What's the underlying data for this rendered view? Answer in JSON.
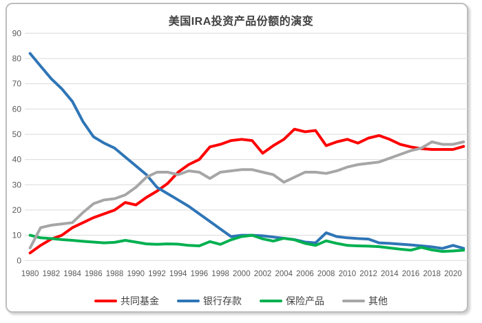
{
  "title_bar": {
    "title": "美国IRA投资产品份额的演变"
  },
  "colors": {
    "title_text": "#404040",
    "axis_text": "#595959",
    "gridline": "#D9D9D9",
    "card_border": "#BDBDBD",
    "legend_text": "#404040"
  },
  "chart_data": {
    "type": "line",
    "title": "美国IRA投资产品份额的演变",
    "x": [
      1980,
      1981,
      1982,
      1983,
      1984,
      1985,
      1986,
      1987,
      1988,
      1989,
      1990,
      1991,
      1992,
      1993,
      1994,
      1995,
      1996,
      1997,
      1998,
      1999,
      2000,
      2001,
      2002,
      2003,
      2004,
      2005,
      2006,
      2007,
      2008,
      2009,
      2010,
      2011,
      2012,
      2013,
      2014,
      2015,
      2016,
      2017,
      2018,
      2019,
      2020,
      2021
    ],
    "x_tick_interval": 2,
    "x_tick_labels": [
      "1980",
      "1982",
      "1984",
      "1986",
      "1988",
      "1990",
      "1992",
      "1994",
      "1996",
      "1998",
      "2000",
      "2002",
      "2004",
      "2006",
      "2008",
      "2010",
      "2012",
      "2014",
      "2016",
      "2018",
      "2020"
    ],
    "ylim": [
      0,
      90
    ],
    "ytick_step": 10,
    "y_tick_labels": [
      "0",
      "10",
      "20",
      "30",
      "40",
      "50",
      "60",
      "70",
      "80",
      "90"
    ],
    "grid": "horizontal-only",
    "legend_position": "bottom",
    "series": [
      {
        "id": "mutual-funds",
        "name": "共同基金",
        "color": "#FF0000",
        "values": [
          3,
          6,
          8.5,
          10,
          13,
          15,
          17,
          18.5,
          20,
          23,
          22,
          25,
          27.5,
          30.5,
          35,
          38,
          40,
          45,
          46,
          47.5,
          48,
          47.5,
          42.5,
          45.5,
          48,
          52,
          51,
          51.5,
          45.5,
          47,
          48,
          46.5,
          48.5,
          49.5,
          48,
          46,
          45,
          44.3,
          44,
          44,
          44,
          45.2
        ]
      },
      {
        "id": "bank-deposits",
        "name": "银行存款",
        "color": "#2E75B6",
        "values": [
          82,
          77,
          72,
          68,
          63,
          55,
          49,
          46.5,
          44.5,
          41,
          37.5,
          34,
          29,
          26.5,
          24,
          21.5,
          18.5,
          15.5,
          12.5,
          9.5,
          10,
          10,
          9.8,
          9.3,
          8.8,
          8.3,
          7.3,
          7,
          11,
          9.5,
          9,
          8.7,
          8.5,
          7,
          6.8,
          6.5,
          6.2,
          5.8,
          5.4,
          4.8,
          6,
          4.8
        ]
      },
      {
        "id": "insurance-products",
        "name": "保险产品",
        "color": "#00B050",
        "values": [
          10,
          9,
          8.7,
          8.3,
          8,
          7.6,
          7.3,
          7,
          7.2,
          8,
          7.3,
          6.6,
          6.4,
          6.6,
          6.5,
          6,
          5.8,
          7.5,
          6.4,
          8.2,
          9.5,
          10,
          8.6,
          7.7,
          8.8,
          8.2,
          6.8,
          6,
          7.8,
          6.8,
          6,
          5.8,
          5.7,
          5.5,
          5,
          4.5,
          4.1,
          5.2,
          4.2,
          3.6,
          3.8,
          4.1
        ]
      },
      {
        "id": "other",
        "name": "其他",
        "color": "#A6A6A6",
        "values": [
          5,
          13,
          14,
          14.5,
          15,
          19,
          22.5,
          24,
          24.5,
          26,
          29,
          33,
          35,
          35,
          34,
          35.5,
          35,
          32.5,
          35,
          35.5,
          36,
          36,
          35,
          34,
          31,
          33,
          35,
          35,
          34.5,
          35.5,
          37,
          38,
          38.5,
          39,
          40.5,
          42,
          43.5,
          44.5,
          47,
          46,
          46,
          47
        ]
      }
    ]
  }
}
